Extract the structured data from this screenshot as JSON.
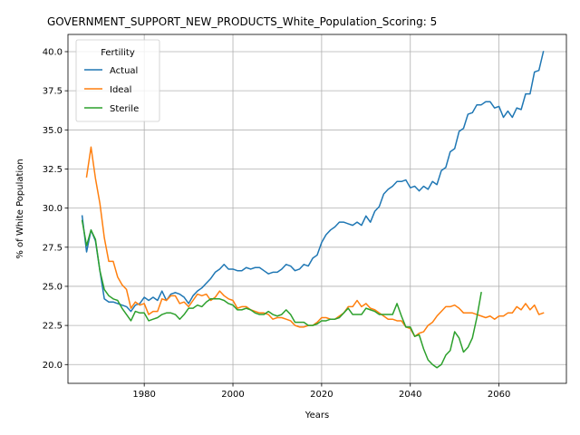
{
  "chart_data": {
    "type": "line",
    "title": "GOVERNMENT_SUPPORT_NEW_PRODUCTS_White_Population_Scoring: 5",
    "xlabel": "Years",
    "ylabel": "% of White Population",
    "xlim": [
      1962.8,
      2075.2
    ],
    "ylim": [
      18.8,
      41.1
    ],
    "xticks": [
      1980,
      2000,
      2020,
      2040,
      2060
    ],
    "yticks": [
      20.0,
      22.5,
      25.0,
      27.5,
      30.0,
      32.5,
      35.0,
      37.5,
      40.0
    ],
    "ytick_labels": [
      "20.0",
      "22.5",
      "25.0",
      "27.5",
      "30.0",
      "32.5",
      "35.0",
      "37.5",
      "40.0"
    ],
    "grid": true,
    "legend": {
      "title": "Fertility",
      "position": "top-left"
    },
    "series": [
      {
        "name": "Actual",
        "color": "#1f77b4",
        "x": [
          1966,
          1967,
          1968,
          1969,
          1970,
          1971,
          1972,
          1973,
          1974,
          1975,
          1976,
          1977,
          1978,
          1979,
          1980,
          1981,
          1982,
          1983,
          1984,
          1985,
          1986,
          1987,
          1988,
          1989,
          1990,
          1991,
          1992,
          1993,
          1994,
          1995,
          1996,
          1997,
          1998,
          1999,
          2000,
          2001,
          2002,
          2003,
          2004,
          2005,
          2006,
          2007,
          2008,
          2009,
          2010,
          2011,
          2012,
          2013,
          2014,
          2015,
          2016,
          2017,
          2018,
          2019,
          2020,
          2021,
          2022,
          2023,
          2024,
          2025,
          2026,
          2027,
          2028,
          2029,
          2030,
          2031,
          2032,
          2033,
          2034,
          2035,
          2036,
          2037,
          2038,
          2039,
          2040,
          2041,
          2042,
          2043,
          2044,
          2045,
          2046,
          2047,
          2048,
          2049,
          2050,
          2051,
          2052,
          2053,
          2054,
          2055,
          2056,
          2057,
          2058,
          2059,
          2060,
          2061,
          2062,
          2063,
          2064,
          2065,
          2066,
          2067,
          2068,
          2069,
          2070
        ],
        "y": [
          29.5,
          27.2,
          28.6,
          27.9,
          26.0,
          24.2,
          24.0,
          24.0,
          23.9,
          23.8,
          23.7,
          23.4,
          23.8,
          23.9,
          24.3,
          24.1,
          24.3,
          24.1,
          24.7,
          24.1,
          24.5,
          24.6,
          24.5,
          24.3,
          23.9,
          24.4,
          24.7,
          24.9,
          25.2,
          25.5,
          25.9,
          26.1,
          26.4,
          26.1,
          26.1,
          26.0,
          26.0,
          26.2,
          26.1,
          26.2,
          26.2,
          26.0,
          25.8,
          25.9,
          25.9,
          26.1,
          26.4,
          26.3,
          26.0,
          26.1,
          26.4,
          26.3,
          26.8,
          27.0,
          27.8,
          28.3,
          28.6,
          28.8,
          29.1,
          29.1,
          29.0,
          28.9,
          29.1,
          28.9,
          29.5,
          29.1,
          29.8,
          30.1,
          30.9,
          31.2,
          31.4,
          31.7,
          31.7,
          31.8,
          31.3,
          31.4,
          31.1,
          31.4,
          31.2,
          31.7,
          31.5,
          32.4,
          32.6,
          33.6,
          33.8,
          34.9,
          35.1,
          36.0,
          36.1,
          36.6,
          36.6,
          36.8,
          36.8,
          36.4,
          36.5,
          35.8,
          36.2,
          35.8,
          36.4,
          36.3,
          37.3,
          37.3,
          38.7,
          38.8,
          40.0
        ]
      },
      {
        "name": "Ideal",
        "color": "#ff7f0e",
        "x": [
          1967,
          1968,
          1969,
          1970,
          1971,
          1972,
          1973,
          1974,
          1975,
          1976,
          1977,
          1978,
          1979,
          1980,
          1981,
          1982,
          1983,
          1984,
          1985,
          1986,
          1987,
          1988,
          1989,
          1990,
          1991,
          1992,
          1993,
          1994,
          1995,
          1996,
          1997,
          1998,
          1999,
          2000,
          2001,
          2002,
          2003,
          2004,
          2005,
          2006,
          2007,
          2008,
          2009,
          2010,
          2011,
          2012,
          2013,
          2014,
          2015,
          2016,
          2017,
          2018,
          2019,
          2020,
          2021,
          2022,
          2023,
          2024,
          2025,
          2026,
          2027,
          2028,
          2029,
          2030,
          2031,
          2032,
          2033,
          2034,
          2035,
          2036,
          2037,
          2038,
          2039,
          2040,
          2041,
          2042,
          2043,
          2044,
          2045,
          2046,
          2047,
          2048,
          2049,
          2050,
          2051,
          2052,
          2053,
          2054,
          2055,
          2056,
          2057,
          2058,
          2059,
          2060,
          2061,
          2062,
          2063,
          2064,
          2065,
          2066,
          2067,
          2068,
          2069,
          2070
        ],
        "y": [
          32.0,
          33.9,
          31.9,
          30.3,
          28.1,
          26.6,
          26.6,
          25.6,
          25.1,
          24.8,
          23.6,
          24.0,
          23.8,
          23.9,
          23.2,
          23.4,
          23.4,
          24.2,
          24.1,
          24.4,
          24.4,
          23.9,
          24.0,
          23.7,
          24.1,
          24.5,
          24.4,
          24.5,
          24.1,
          24.3,
          24.7,
          24.4,
          24.2,
          24.1,
          23.6,
          23.7,
          23.7,
          23.5,
          23.4,
          23.3,
          23.3,
          23.2,
          22.9,
          23.0,
          23.0,
          22.9,
          22.8,
          22.5,
          22.4,
          22.4,
          22.5,
          22.5,
          22.7,
          23.0,
          23.0,
          22.9,
          22.9,
          23.1,
          23.3,
          23.7,
          23.7,
          24.1,
          23.7,
          23.9,
          23.6,
          23.5,
          23.3,
          23.1,
          22.9,
          22.9,
          22.8,
          22.8,
          22.4,
          22.3,
          21.8,
          22.0,
          22.1,
          22.5,
          22.7,
          23.1,
          23.4,
          23.7,
          23.7,
          23.8,
          23.6,
          23.3,
          23.3,
          23.3,
          23.2,
          23.1,
          23.0,
          23.1,
          22.9,
          23.1,
          23.1,
          23.3,
          23.3,
          23.7,
          23.5,
          23.9,
          23.5,
          23.8,
          23.2,
          23.3
        ]
      },
      {
        "name": "Sterile",
        "color": "#2ca02c",
        "x": [
          1966,
          1967,
          1968,
          1969,
          1970,
          1971,
          1972,
          1973,
          1974,
          1975,
          1976,
          1977,
          1978,
          1979,
          1980,
          1981,
          1982,
          1983,
          1984,
          1985,
          1986,
          1987,
          1988,
          1989,
          1990,
          1991,
          1992,
          1993,
          1994,
          1995,
          1996,
          1997,
          1998,
          1999,
          2000,
          2001,
          2002,
          2003,
          2004,
          2005,
          2006,
          2007,
          2008,
          2009,
          2010,
          2011,
          2012,
          2013,
          2014,
          2015,
          2016,
          2017,
          2018,
          2019,
          2020,
          2021,
          2022,
          2023,
          2024,
          2025,
          2026,
          2027,
          2028,
          2029,
          2030,
          2031,
          2032,
          2033,
          2034,
          2035,
          2036,
          2037,
          2038,
          2039,
          2040,
          2041,
          2042,
          2043,
          2044,
          2045,
          2046,
          2047,
          2048,
          2049,
          2050,
          2051,
          2052,
          2053,
          2054,
          2055,
          2056
        ],
        "y": [
          29.2,
          27.6,
          28.6,
          28.0,
          26.0,
          24.8,
          24.4,
          24.2,
          24.1,
          23.6,
          23.2,
          22.8,
          23.4,
          23.3,
          23.3,
          22.8,
          22.9,
          23.0,
          23.2,
          23.3,
          23.3,
          23.2,
          22.9,
          23.2,
          23.6,
          23.6,
          23.8,
          23.7,
          24.0,
          24.2,
          24.2,
          24.2,
          24.1,
          23.9,
          23.8,
          23.5,
          23.5,
          23.6,
          23.5,
          23.3,
          23.2,
          23.2,
          23.4,
          23.2,
          23.1,
          23.2,
          23.5,
          23.2,
          22.7,
          22.7,
          22.7,
          22.5,
          22.5,
          22.6,
          22.8,
          22.8,
          22.9,
          22.9,
          23.0,
          23.3,
          23.6,
          23.2,
          23.2,
          23.2,
          23.6,
          23.5,
          23.4,
          23.2,
          23.2,
          23.2,
          23.2,
          23.9,
          23.1,
          22.4,
          22.4,
          21.8,
          21.9,
          21.0,
          20.3,
          20.0,
          19.8,
          20.0,
          20.6,
          20.9,
          22.1,
          21.7,
          20.8,
          21.1,
          21.7,
          23.0,
          24.6
        ]
      }
    ]
  }
}
